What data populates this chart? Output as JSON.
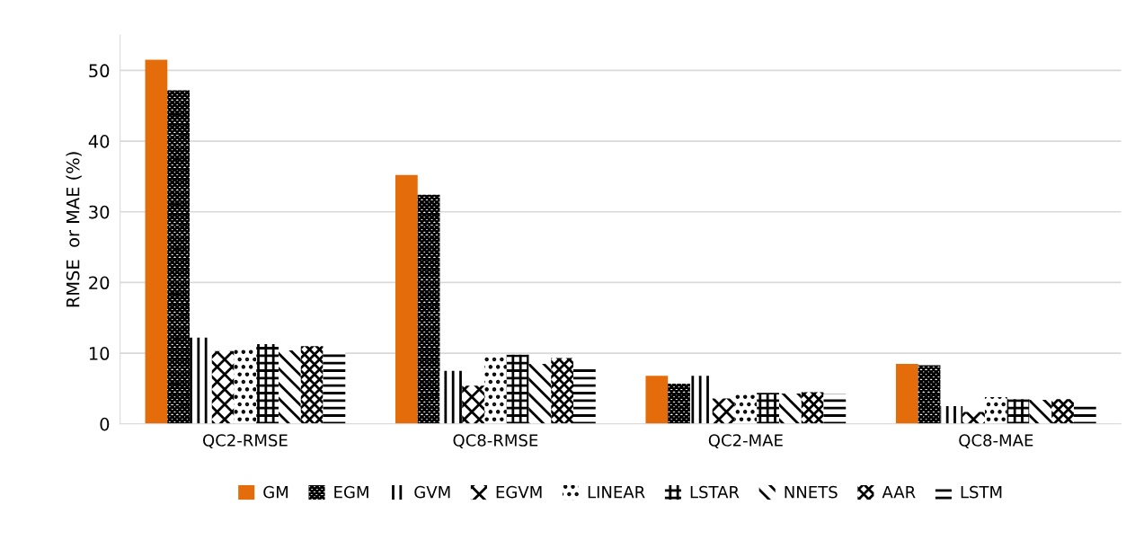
{
  "chart_data": {
    "type": "bar",
    "ylabel": "RMSE  or MAE (%)",
    "categories": [
      "QC2-RMSE",
      "QC8-RMSE",
      "QC2-MAE",
      "QC8-MAE"
    ],
    "series": [
      {
        "name": "GM",
        "color": "#e46c0a",
        "values": [
          51.5,
          35.2,
          6.8,
          8.5
        ]
      },
      {
        "name": "EGM",
        "color": "#000000",
        "values": [
          47.2,
          32.4,
          5.7,
          8.3
        ]
      },
      {
        "name": "GVM",
        "color": "#000000",
        "values": [
          12.2,
          7.5,
          6.8,
          2.5
        ]
      },
      {
        "name": "EGVM",
        "color": "#000000",
        "values": [
          10.3,
          5.4,
          3.6,
          1.7
        ]
      },
      {
        "name": "LINEAR",
        "color": "#000000",
        "values": [
          10.8,
          9.8,
          4.3,
          3.8
        ]
      },
      {
        "name": "LSTAR",
        "color": "#000000",
        "values": [
          11.3,
          9.8,
          4.4,
          3.5
        ]
      },
      {
        "name": "NNETS",
        "color": "#000000",
        "values": [
          10.4,
          8.5,
          4.3,
          3.4
        ]
      },
      {
        "name": "AAR",
        "color": "#000000",
        "values": [
          11.0,
          9.3,
          4.5,
          3.5
        ]
      },
      {
        "name": "LSTM",
        "color": "#000000",
        "values": [
          10.2,
          8.0,
          4.2,
          2.9
        ]
      }
    ],
    "ylim": [
      0,
      55
    ],
    "yticks": [
      0,
      10,
      20,
      30,
      40,
      50
    ],
    "grid": "y",
    "legend": "bottom"
  }
}
